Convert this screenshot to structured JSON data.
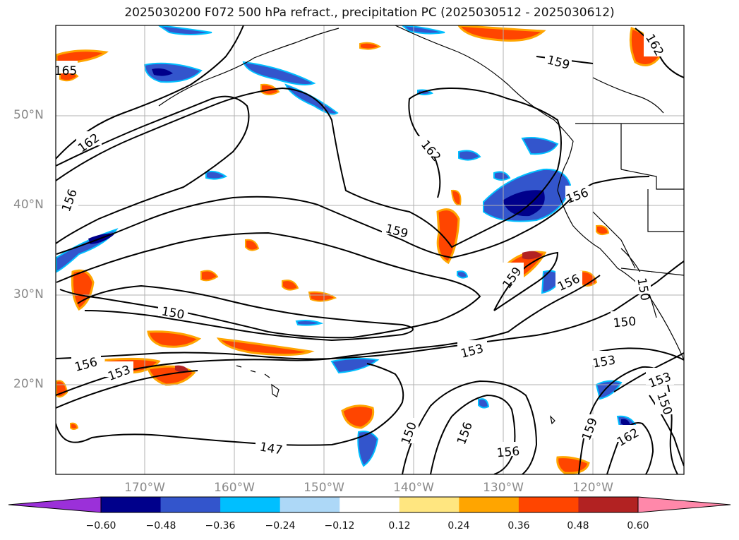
{
  "title": "2025030200 F072 500 hPa refract., precipitation PC (2025030512 - 2025030612)",
  "axes": {
    "lat_labels": [
      "50°N",
      "40°N",
      "30°N",
      "20°N"
    ],
    "lon_labels": [
      "170°W",
      "160°W",
      "150°W",
      "140°W",
      "130°W",
      "120°W"
    ]
  },
  "colorbar": {
    "tick_labels": [
      "−0.60",
      "−0.48",
      "−0.36",
      "−0.24",
      "−0.12",
      "0.12",
      "0.24",
      "0.36",
      "0.48",
      "0.60"
    ],
    "colors": [
      "#9b30d9",
      "#00008b",
      "#3355cc",
      "#00bfff",
      "#add8f7",
      "#ffffff",
      "#ffe680",
      "#ffa500",
      "#ff4500",
      "#b22222",
      "#ff88aa"
    ]
  },
  "contour_labels": [
    "165",
    "162",
    "156",
    "162",
    "159",
    "156",
    "159",
    "156",
    "150",
    "150",
    "150",
    "156",
    "153",
    "153",
    "153",
    "153",
    "150",
    "147",
    "150",
    "156",
    "156",
    "159",
    "162",
    "159",
    "162"
  ]
}
